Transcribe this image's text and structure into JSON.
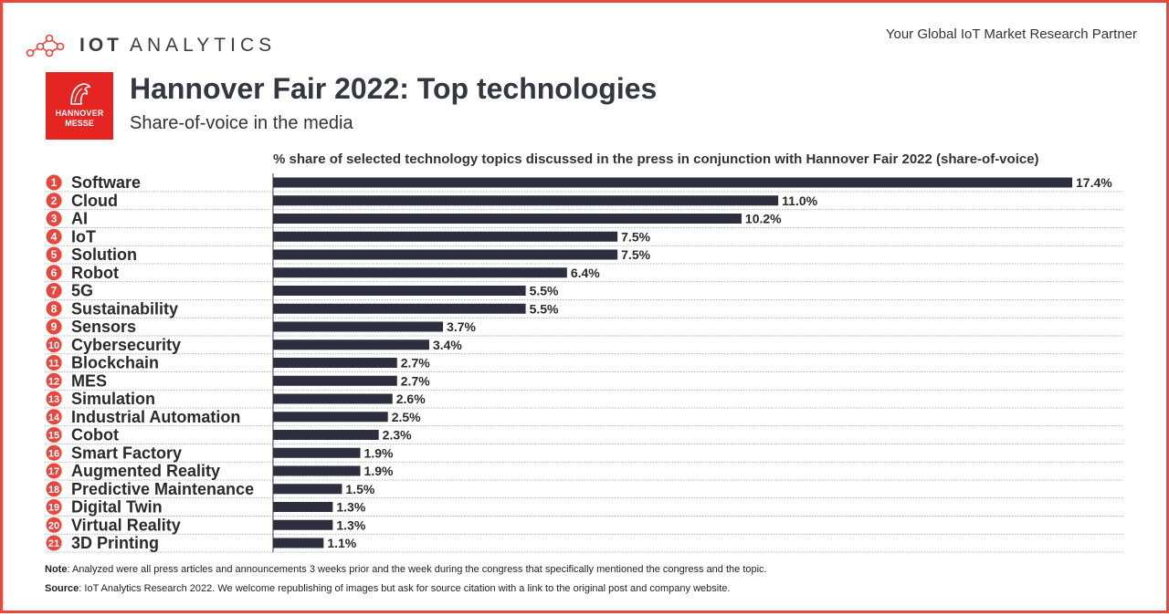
{
  "brand": {
    "name_part1": "IOT",
    "name_part2": "ANALYTICS",
    "tagline": "Your Global IoT Market Research Partner",
    "accent_color": "#e8473e",
    "icon": "molecule-network-icon"
  },
  "event_logo": {
    "line1": "HANNOVER",
    "line2": "MESSE",
    "color": "#e52521",
    "icon": "horse-head-icon"
  },
  "header": {
    "title": "Hannover Fair 2022: Top technologies",
    "subtitle": "Share-of-voice in the media"
  },
  "chart_data": {
    "type": "bar",
    "orientation": "horizontal",
    "title": "% share of selected technology topics discussed in the press in conjunction with Hannover Fair 2022 (share-of-voice)",
    "xlim": [
      0,
      17.4
    ],
    "grid": false,
    "bar_color": "#2d2e3e",
    "rank_color": "#e8473e",
    "ranks": [
      "1",
      "2",
      "3",
      "4",
      "5",
      "6",
      "7",
      "8",
      "9",
      "10",
      "11",
      "12",
      "13",
      "14",
      "15",
      "16",
      "17",
      "18",
      "19",
      "20",
      "21"
    ],
    "categories": [
      "Software",
      "Cloud",
      "AI",
      "IoT",
      "Solution",
      "Robot",
      "5G",
      "Sustainability",
      "Sensors",
      "Cybersecurity",
      "Blockchain",
      "MES",
      "Simulation",
      "Industrial Automation",
      "Cobot",
      "Smart Factory",
      "Augmented Reality",
      "Predictive Maintenance",
      "Digital Twin",
      "Virtual Reality",
      "3D Printing"
    ],
    "values": [
      17.4,
      11.0,
      10.2,
      7.5,
      7.5,
      6.4,
      5.5,
      5.5,
      3.7,
      3.4,
      2.7,
      2.7,
      2.6,
      2.5,
      2.3,
      1.9,
      1.9,
      1.5,
      1.3,
      1.3,
      1.1
    ],
    "value_labels": [
      "17.4%",
      "11.0%",
      "10.2%",
      "7.5%",
      "7.5%",
      "6.4%",
      "5.5%",
      "5.5%",
      "3.7%",
      "3.4%",
      "2.7%",
      "2.7%",
      "2.6%",
      "2.5%",
      "2.3%",
      "1.9%",
      "1.9%",
      "1.5%",
      "1.3%",
      "1.3%",
      "1.1%"
    ]
  },
  "footer": {
    "note_label": "Note",
    "note_text": ": Analyzed were all press articles and announcements 3 weeks prior and the week during the congress that specifically mentioned the congress and the topic.",
    "source_label": "Source",
    "source_text": ": IoT Analytics Research 2022. We welcome republishing of images but ask for source citation with a link to the original post and company website."
  }
}
